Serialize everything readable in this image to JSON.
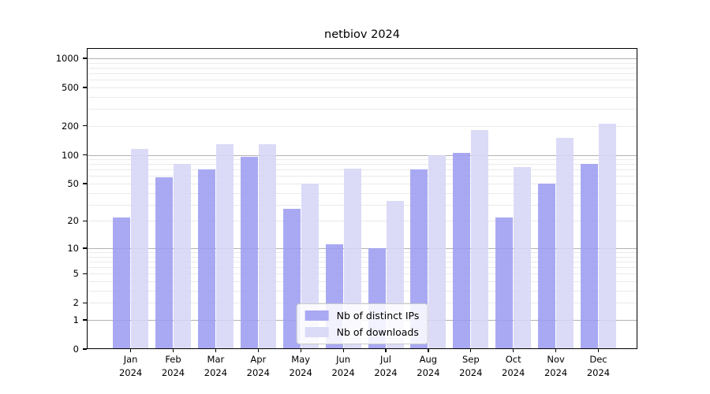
{
  "chart_data": {
    "type": "bar",
    "title": "netbiov 2024",
    "x_year_label": "2024",
    "categories": [
      "Jan",
      "Feb",
      "Mar",
      "Apr",
      "May",
      "Jun",
      "Jul",
      "Aug",
      "Sep",
      "Oct",
      "Nov",
      "Dec"
    ],
    "series": [
      {
        "name": "Nb of distinct IPs",
        "color": "#9d9df1",
        "values": [
          22,
          58,
          70,
          95,
          27,
          11,
          10,
          70,
          105,
          22,
          50,
          80
        ]
      },
      {
        "name": "Nb of downloads",
        "color": "#d6d6f6",
        "values": [
          115,
          81,
          130,
          130,
          50,
          72,
          33,
          100,
          180,
          75,
          150,
          210
        ]
      }
    ],
    "yscale": "log1p",
    "ylim": [
      0,
      1280
    ],
    "yticks": [
      0,
      1,
      2,
      5,
      10,
      20,
      50,
      100,
      200,
      500,
      1000
    ],
    "grid": {
      "major_values": [
        1,
        10,
        100,
        1000
      ],
      "minor_decades": [
        1,
        10,
        100
      ],
      "minor_multiples": [
        2,
        3,
        4,
        5,
        6,
        7,
        8,
        9
      ],
      "major_color": "#b2b2b2",
      "minor_color": "#eaeaea"
    },
    "legend_position": "bottom-center"
  }
}
